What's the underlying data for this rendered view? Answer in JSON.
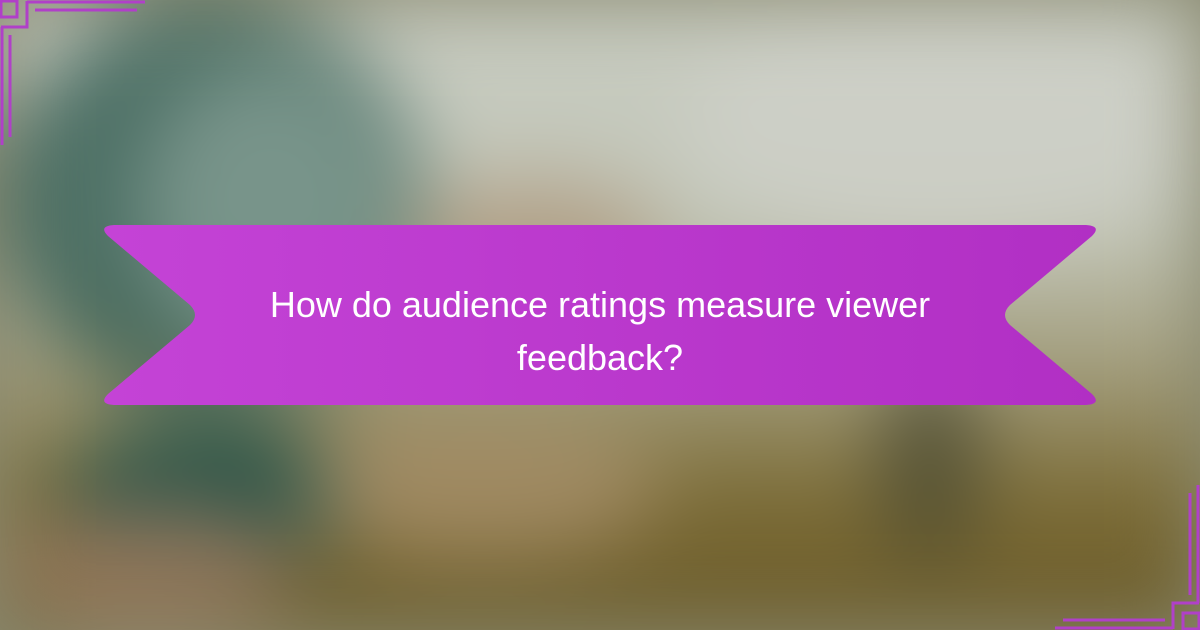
{
  "banner": {
    "title": "How do audience ratings measure viewer feedback?",
    "color": "#bd3dd0"
  },
  "frame_color": "#b040c8"
}
